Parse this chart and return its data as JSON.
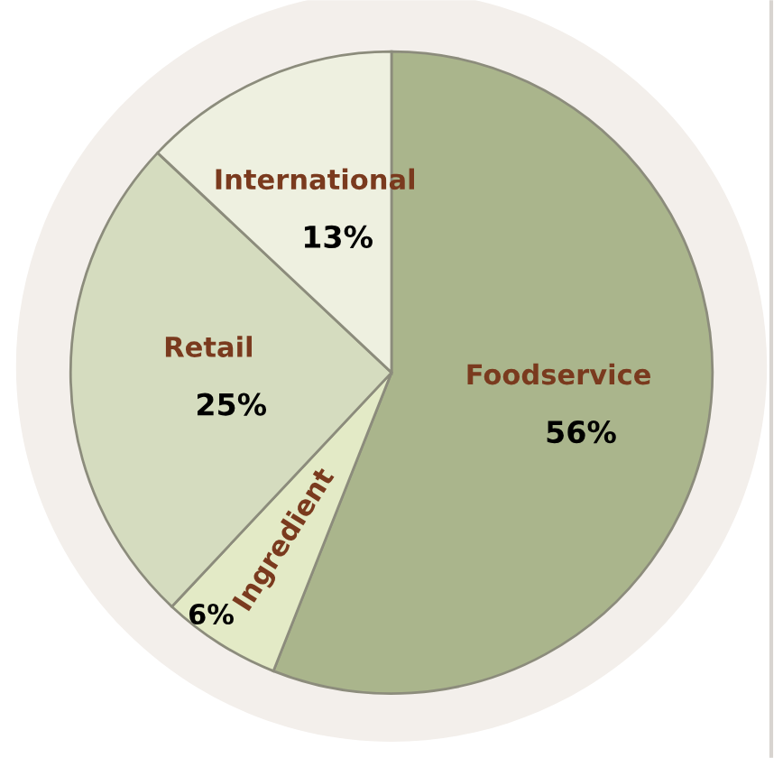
{
  "chart_data": {
    "type": "pie",
    "categories": [
      "Foodservice",
      "Ingredient",
      "Retail",
      "International"
    ],
    "values": [
      56,
      6,
      25,
      13
    ],
    "colors": [
      "#aab58c",
      "#e3eac6",
      "#d5dcbf",
      "#eef0e0"
    ],
    "value_labels": [
      "56%",
      "6%",
      "25%",
      "13%"
    ]
  }
}
